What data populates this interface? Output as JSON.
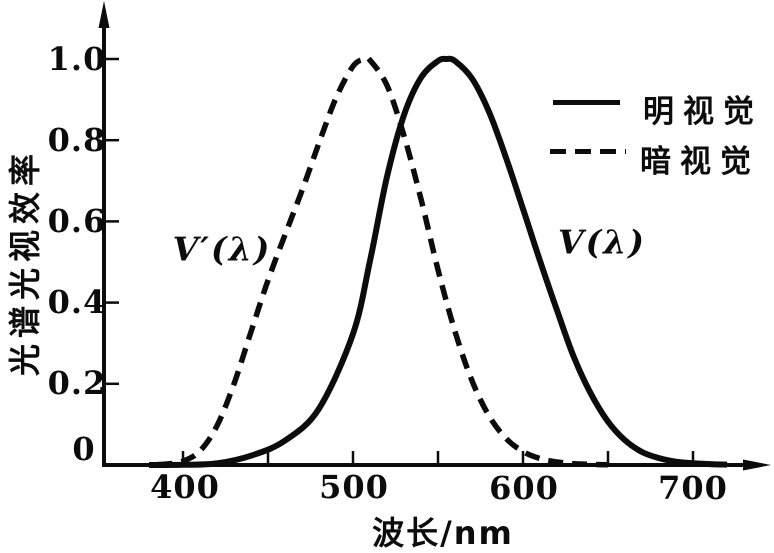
{
  "figure": {
    "y_axis": {
      "title": "光谱光视效率",
      "tick_labels": [
        "1.0",
        "0.8",
        "0.6",
        "0.4",
        "0.2",
        "0"
      ]
    },
    "x_axis": {
      "title": "波长/nm",
      "tick_labels": [
        "400",
        "500",
        "600",
        "700"
      ]
    },
    "legend": [
      {
        "label": "明视觉",
        "style": "solid"
      },
      {
        "label": "暗视觉",
        "style": "dashed"
      }
    ],
    "curve_labels": {
      "scotopic": "V′(λ)",
      "photopic": "V(λ)"
    },
    "ink_color": "#0c0c0c",
    "background_color": "#ffffff"
  },
  "chart_data": {
    "type": "line",
    "title": "",
    "xlabel": "波长/nm",
    "ylabel": "光谱光视效率",
    "xlim": [
      354,
      748
    ],
    "ylim": [
      0,
      1.05
    ],
    "x_ticks": [
      400,
      450,
      500,
      550,
      600,
      650,
      700
    ],
    "x_tick_labels": [
      "400",
      "",
      "500",
      "",
      "600",
      "",
      "700"
    ],
    "y_ticks": [
      0.2,
      0.4,
      0.6,
      0.8,
      1.0
    ],
    "y_tick_labels": [
      "0.2",
      "0.4",
      "0.6",
      "0.8",
      "1.0"
    ],
    "grid": false,
    "legend_position": "upper right",
    "series": [
      {
        "name": "明视觉",
        "curve_label": "V(λ)",
        "line_style": "solid",
        "color": "#0c0c0c",
        "peak_nm": 555,
        "points": [
          [
            380,
            0.0
          ],
          [
            400,
            0.0004
          ],
          [
            420,
            0.004
          ],
          [
            440,
            0.023
          ],
          [
            460,
            0.06
          ],
          [
            480,
            0.139
          ],
          [
            500,
            0.323
          ],
          [
            510,
            0.503
          ],
          [
            520,
            0.71
          ],
          [
            530,
            0.862
          ],
          [
            540,
            0.954
          ],
          [
            550,
            0.995
          ],
          [
            555,
            1.0
          ],
          [
            560,
            0.995
          ],
          [
            570,
            0.952
          ],
          [
            580,
            0.87
          ],
          [
            590,
            0.757
          ],
          [
            600,
            0.631
          ],
          [
            610,
            0.503
          ],
          [
            620,
            0.381
          ],
          [
            630,
            0.265
          ],
          [
            640,
            0.175
          ],
          [
            650,
            0.107
          ],
          [
            660,
            0.061
          ],
          [
            670,
            0.032
          ],
          [
            680,
            0.017
          ],
          [
            690,
            0.0082
          ],
          [
            700,
            0.0041
          ],
          [
            710,
            0.0021
          ],
          [
            720,
            0.001
          ]
        ]
      },
      {
        "name": "暗视觉",
        "curve_label": "V′(λ)",
        "line_style": "dashed",
        "color": "#0c0c0c",
        "peak_nm": 507,
        "points": [
          [
            385,
            0.001
          ],
          [
            390,
            0.0022
          ],
          [
            400,
            0.0093
          ],
          [
            410,
            0.0348
          ],
          [
            420,
            0.0966
          ],
          [
            430,
            0.1998
          ],
          [
            440,
            0.3281
          ],
          [
            450,
            0.455
          ],
          [
            460,
            0.567
          ],
          [
            470,
            0.676
          ],
          [
            480,
            0.793
          ],
          [
            490,
            0.904
          ],
          [
            500,
            0.982
          ],
          [
            507,
            1.0
          ],
          [
            510,
            0.997
          ],
          [
            520,
            0.935
          ],
          [
            530,
            0.811
          ],
          [
            540,
            0.655
          ],
          [
            550,
            0.481
          ],
          [
            560,
            0.3288
          ],
          [
            570,
            0.2076
          ],
          [
            580,
            0.1212
          ],
          [
            590,
            0.0655
          ],
          [
            600,
            0.0332
          ],
          [
            610,
            0.0159
          ],
          [
            620,
            0.0074
          ],
          [
            630,
            0.0033
          ],
          [
            640,
            0.0015
          ],
          [
            650,
            0.0007
          ]
        ]
      }
    ]
  }
}
